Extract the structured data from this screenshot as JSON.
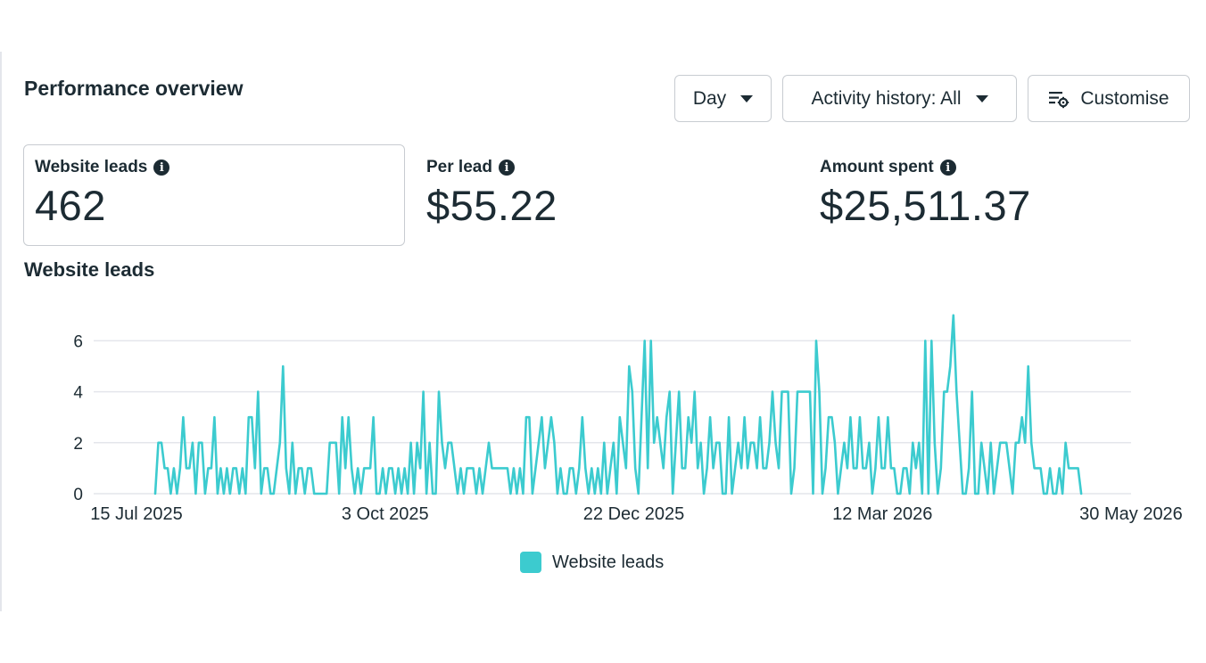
{
  "header": {
    "title": "Performance overview"
  },
  "controls": {
    "day_label": "Day",
    "activity_label": "Activity history: All",
    "customise_label": "Customise"
  },
  "metrics": [
    {
      "label": "Website leads",
      "value": "462"
    },
    {
      "label": "Per lead",
      "value": "$55.22"
    },
    {
      "label": "Amount spent",
      "value": "$25,511.37"
    }
  ],
  "chart_section": {
    "title": "Website leads",
    "legend_label": "Website leads"
  },
  "colors": {
    "series": "#3ccbcf",
    "grid": "#e4e6eb",
    "text": "#1c2b33"
  },
  "chart_data": {
    "type": "line",
    "title": "Website leads",
    "xlabel": "",
    "ylabel": "",
    "x_range": [
      "2025-07-15",
      "2026-05-30"
    ],
    "x_ticks": [
      "15 Jul 2025",
      "3 Oct 2025",
      "22 Dec 2025",
      "12 Mar 2026",
      "30 May 2026"
    ],
    "y_ticks": [
      0,
      2,
      4,
      6
    ],
    "ylim": [
      0,
      7.2
    ],
    "grid": true,
    "legend": "bottom-center",
    "series": [
      {
        "name": "Website leads",
        "start_date": "2025-07-21",
        "values": [
          0,
          2,
          2,
          1,
          1,
          0,
          1,
          0,
          1,
          3,
          1,
          1,
          2,
          0,
          2,
          2,
          0,
          1,
          1,
          3,
          0,
          1,
          0,
          1,
          0,
          1,
          1,
          0,
          1,
          0,
          3,
          3,
          1,
          4,
          0,
          1,
          1,
          0,
          0,
          1,
          2,
          5,
          1,
          0,
          2,
          0,
          1,
          1,
          0,
          1,
          1,
          0,
          0,
          0,
          0,
          0,
          2,
          2,
          2,
          0,
          3,
          1,
          3,
          1,
          0,
          1,
          0,
          1,
          1,
          1,
          3,
          0,
          0,
          1,
          0,
          1,
          1,
          0,
          1,
          0,
          1,
          0,
          2,
          0,
          2,
          1,
          4,
          0,
          2,
          0,
          0,
          4,
          2,
          1,
          2,
          2,
          1,
          0,
          1,
          0,
          1,
          1,
          1,
          0,
          1,
          0,
          1,
          2,
          1,
          1,
          1,
          1,
          1,
          1,
          0,
          1,
          0,
          1,
          0,
          3,
          3,
          0,
          1,
          2,
          3,
          1,
          2,
          3,
          2,
          0,
          1,
          0,
          0,
          1,
          1,
          0,
          1,
          3,
          1,
          0,
          1,
          0,
          1,
          0,
          2,
          0,
          1,
          2,
          0,
          3,
          2,
          1,
          5,
          4,
          1,
          0,
          3,
          6,
          1,
          6,
          2,
          3,
          2,
          1,
          3,
          4,
          0,
          2,
          4,
          1,
          1,
          3,
          2,
          4,
          1,
          2,
          0,
          1,
          3,
          1,
          2,
          2,
          0,
          0,
          3,
          0,
          1,
          2,
          1,
          3,
          1,
          2,
          2,
          1,
          3,
          1,
          1,
          2,
          4,
          2,
          1,
          4,
          4,
          4,
          0,
          1,
          4,
          4,
          4,
          4,
          4,
          0,
          6,
          4,
          0,
          1,
          3,
          3,
          2,
          0,
          1,
          2,
          1,
          3,
          1,
          1,
          3,
          1,
          1,
          2,
          0,
          1,
          3,
          1,
          1,
          3,
          1,
          1,
          0,
          0,
          1,
          1,
          0,
          2,
          1,
          2,
          0,
          6,
          0,
          6,
          2,
          0,
          1,
          4,
          4,
          5,
          7,
          4,
          2,
          0,
          0,
          1,
          4,
          0,
          0,
          2,
          1,
          0,
          2,
          0,
          1,
          2,
          2,
          2,
          1,
          0,
          2,
          2,
          3,
          2,
          5,
          2,
          1,
          1,
          1,
          0,
          0,
          1,
          0,
          0,
          1,
          0,
          2,
          1,
          1,
          1,
          1,
          0
        ]
      }
    ]
  }
}
